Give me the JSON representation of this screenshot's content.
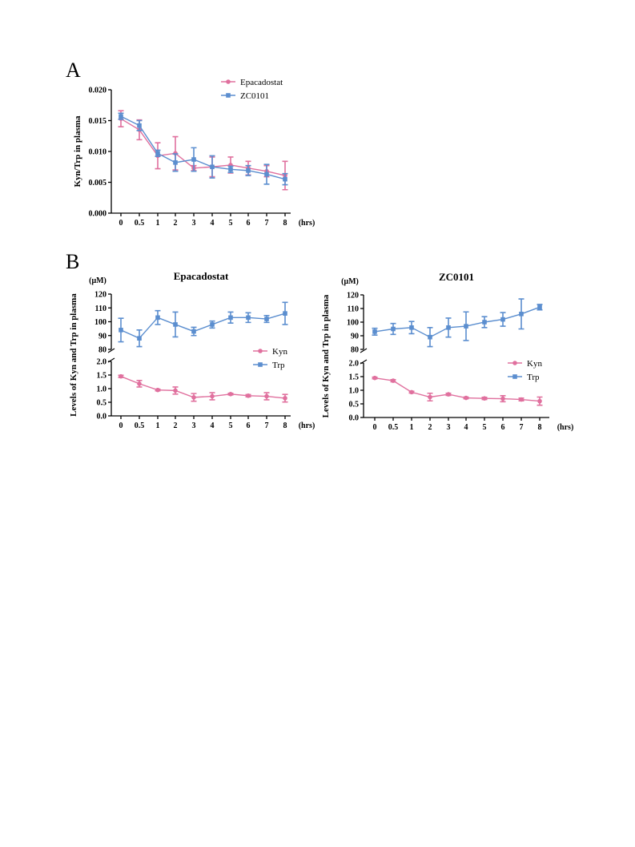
{
  "figure": {
    "panel_a_label": "A",
    "panel_b_label": "B"
  },
  "chart_data": [
    {
      "type": "line",
      "panel": "A",
      "title": "",
      "xlabel": "",
      "x_unit": "(hrs)",
      "ylabel": "Kyn/Trp in plasma",
      "categories": [
        "0",
        "0.5",
        "1",
        "2",
        "3",
        "4",
        "5",
        "6",
        "7",
        "8"
      ],
      "ylim": [
        0,
        0.02
      ],
      "yticks": [
        "0.000",
        "0.005",
        "0.010",
        "0.015",
        "0.020"
      ],
      "legend_position": "top-right",
      "series": [
        {
          "name": "Epacadostat",
          "color": "#e0709e",
          "marker": "circle",
          "values": [
            0.0153,
            0.0135,
            0.0093,
            0.0097,
            0.0073,
            0.0075,
            0.0078,
            0.0073,
            0.0068,
            0.0061
          ],
          "errors": [
            0.0013,
            0.0016,
            0.0021,
            0.0027,
            0.0004,
            0.0016,
            0.0013,
            0.0011,
            0.0009,
            0.0023
          ]
        },
        {
          "name": "ZC0101",
          "color": "#5b8ecf",
          "marker": "square",
          "values": [
            0.0157,
            0.0142,
            0.0097,
            0.0082,
            0.0087,
            0.0075,
            0.0071,
            0.0069,
            0.0063,
            0.0055
          ],
          "errors": [
            0.0005,
            0.0008,
            0.0005,
            0.0014,
            0.0019,
            0.0018,
            0.0005,
            0.0008,
            0.0016,
            0.0009
          ]
        }
      ]
    },
    {
      "type": "line",
      "panel": "B-left",
      "title": "Epacadostat",
      "ylabel": "Levels of Kyn and Trp in plasma",
      "y_unit": "(μM)",
      "x_unit": "(hrs)",
      "categories": [
        "0",
        "0.5",
        "1",
        "2",
        "3",
        "4",
        "5",
        "6",
        "7",
        "8"
      ],
      "broken_y_axis": true,
      "upper_ylim": [
        80,
        120
      ],
      "upper_yticks": [
        "80",
        "90",
        "100",
        "110",
        "120"
      ],
      "lower_ylim": [
        0,
        2
      ],
      "lower_yticks": [
        "0.0",
        "0.5",
        "1.0",
        "1.5",
        "2.0"
      ],
      "legend_position": "right",
      "series": [
        {
          "name": "Kyn",
          "color": "#e0709e",
          "marker": "circle",
          "axis": "lower",
          "values": [
            1.45,
            1.18,
            0.95,
            0.93,
            0.68,
            0.72,
            0.8,
            0.74,
            0.72,
            0.65
          ],
          "errors": [
            0.04,
            0.12,
            0.03,
            0.13,
            0.14,
            0.13,
            0.03,
            0.04,
            0.13,
            0.14
          ]
        },
        {
          "name": "Trp",
          "color": "#5b8ecf",
          "marker": "square",
          "axis": "upper",
          "values": [
            94,
            88,
            103,
            98,
            93,
            98,
            103,
            103,
            102,
            106
          ],
          "errors": [
            8.5,
            6,
            5,
            9,
            3,
            2.5,
            4,
            3.5,
            2.5,
            8
          ]
        }
      ]
    },
    {
      "type": "line",
      "panel": "B-right",
      "title": "ZC0101",
      "ylabel": "Levels of Kyn and Trp in plasma",
      "y_unit": "(μM)",
      "x_unit": "(hrs)",
      "categories": [
        "0",
        "0.5",
        "1",
        "2",
        "3",
        "4",
        "5",
        "6",
        "7",
        "8"
      ],
      "broken_y_axis": true,
      "upper_ylim": [
        80,
        120
      ],
      "upper_yticks": [
        "80",
        "90",
        "100",
        "110",
        "120"
      ],
      "lower_ylim": [
        0,
        2
      ],
      "lower_yticks": [
        "0.0",
        "0.5",
        "1.0",
        "1.5",
        "2.0"
      ],
      "legend_position": "right",
      "series": [
        {
          "name": "Kyn",
          "color": "#e0709e",
          "marker": "circle",
          "axis": "lower",
          "values": [
            1.45,
            1.35,
            0.93,
            0.75,
            0.85,
            0.72,
            0.7,
            0.69,
            0.66,
            0.6
          ],
          "errors": [
            0.03,
            0.04,
            0.03,
            0.14,
            0.04,
            0.03,
            0.04,
            0.11,
            0.05,
            0.15
          ]
        },
        {
          "name": "Trp",
          "color": "#5b8ecf",
          "marker": "square",
          "axis": "upper",
          "values": [
            93,
            95,
            96,
            89,
            96,
            97,
            100,
            102,
            106,
            111
          ],
          "errors": [
            2.5,
            4,
            4.5,
            7,
            7,
            10.5,
            4,
            5,
            11,
            2
          ]
        }
      ]
    }
  ]
}
